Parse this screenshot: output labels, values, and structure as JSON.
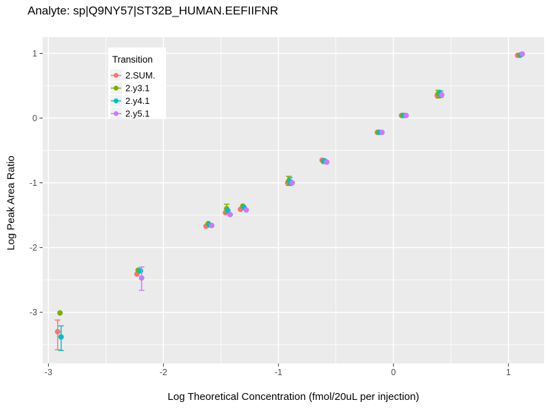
{
  "chart_data": {
    "type": "scatter",
    "title": "Analyte: sp|Q9NY57|ST32B_HUMAN.EEFIIFNR",
    "xlabel": "Log Theoretical Concentration (fmol/20uL per injection)",
    "ylabel": "Log Peak Area Ratio",
    "xlim": [
      -3.05,
      1.31
    ],
    "ylim": [
      -3.79,
      1.25
    ],
    "x_ticks": [
      -3,
      -2,
      -1,
      0,
      1
    ],
    "y_ticks": [
      1,
      0,
      -1,
      -2,
      -3
    ],
    "x_minor": [
      -2.5,
      -1.5,
      -0.5,
      0.5
    ],
    "y_minor": [
      0.5,
      -0.5,
      -1.5,
      -2.5,
      -3.5
    ],
    "panel_bg": "#EBEBEB",
    "grid_color": "#FFFFFF",
    "tick_color": "#333333",
    "tick_label_color": "#4D4D4D",
    "legend": {
      "title": "Transition",
      "position": "top-left-inside",
      "bg": "#FFFFFF",
      "key_bg": "#F2F2F2"
    },
    "series": [
      {
        "name": "2.SUM.",
        "color": "#F8766D",
        "points": [
          {
            "x": -2.92,
            "y": -3.3,
            "ymin": -3.58,
            "ymax": -3.12
          },
          {
            "x": -2.23,
            "y": -2.41
          },
          {
            "x": -1.63,
            "y": -1.67
          },
          {
            "x": -1.46,
            "y": -1.46
          },
          {
            "x": -1.33,
            "y": -1.41
          },
          {
            "x": -0.92,
            "y": -1.0
          },
          {
            "x": -0.62,
            "y": -0.65
          },
          {
            "x": -0.14,
            "y": -0.22
          },
          {
            "x": 0.07,
            "y": 0.04
          },
          {
            "x": 0.38,
            "y": 0.35
          },
          {
            "x": 1.08,
            "y": 0.97
          }
        ]
      },
      {
        "name": "2.y3.1",
        "color": "#7CAE00",
        "points": [
          {
            "x": -2.9,
            "y": -3.01
          },
          {
            "x": -2.22,
            "y": -2.35
          },
          {
            "x": -1.61,
            "y": -1.63
          },
          {
            "x": -1.45,
            "y": -1.4,
            "ymin": -1.47,
            "ymax": -1.33
          },
          {
            "x": -1.31,
            "y": -1.36
          },
          {
            "x": -0.91,
            "y": -0.97,
            "ymin": -1.04,
            "ymax": -0.9
          },
          {
            "x": -0.61,
            "y": -0.67
          },
          {
            "x": -0.13,
            "y": -0.22
          },
          {
            "x": 0.08,
            "y": 0.04
          },
          {
            "x": 0.39,
            "y": 0.38,
            "ymin": 0.31,
            "ymax": 0.43
          },
          {
            "x": 1.1,
            "y": 0.97
          }
        ]
      },
      {
        "name": "2.y4.1",
        "color": "#00BFC4",
        "points": [
          {
            "x": -2.89,
            "y": -3.38,
            "ymin": -3.59,
            "ymax": -3.21
          },
          {
            "x": -2.2,
            "y": -2.36
          },
          {
            "x": -1.6,
            "y": -1.65
          },
          {
            "x": -1.44,
            "y": -1.43
          },
          {
            "x": -1.3,
            "y": -1.38
          },
          {
            "x": -0.9,
            "y": -0.98,
            "ymin": -1.04,
            "ymax": -0.92
          },
          {
            "x": -0.6,
            "y": -0.66
          },
          {
            "x": -0.12,
            "y": -0.22
          },
          {
            "x": 0.09,
            "y": 0.04
          },
          {
            "x": 0.41,
            "y": 0.37,
            "ymin": 0.32,
            "ymax": 0.42
          },
          {
            "x": 1.11,
            "y": 0.98
          }
        ]
      },
      {
        "name": "2.y5.1",
        "color": "#C77CFF",
        "points": [
          {
            "x": -2.19,
            "y": -2.47,
            "ymin": -2.66,
            "ymax": -2.3
          },
          {
            "x": -1.58,
            "y": -1.66
          },
          {
            "x": -1.42,
            "y": -1.49
          },
          {
            "x": -1.28,
            "y": -1.42
          },
          {
            "x": -0.88,
            "y": -1.0
          },
          {
            "x": -0.58,
            "y": -0.68
          },
          {
            "x": -0.1,
            "y": -0.22
          },
          {
            "x": 0.11,
            "y": 0.04
          },
          {
            "x": 0.42,
            "y": 0.36
          },
          {
            "x": 1.12,
            "y": 0.99
          }
        ]
      }
    ]
  }
}
